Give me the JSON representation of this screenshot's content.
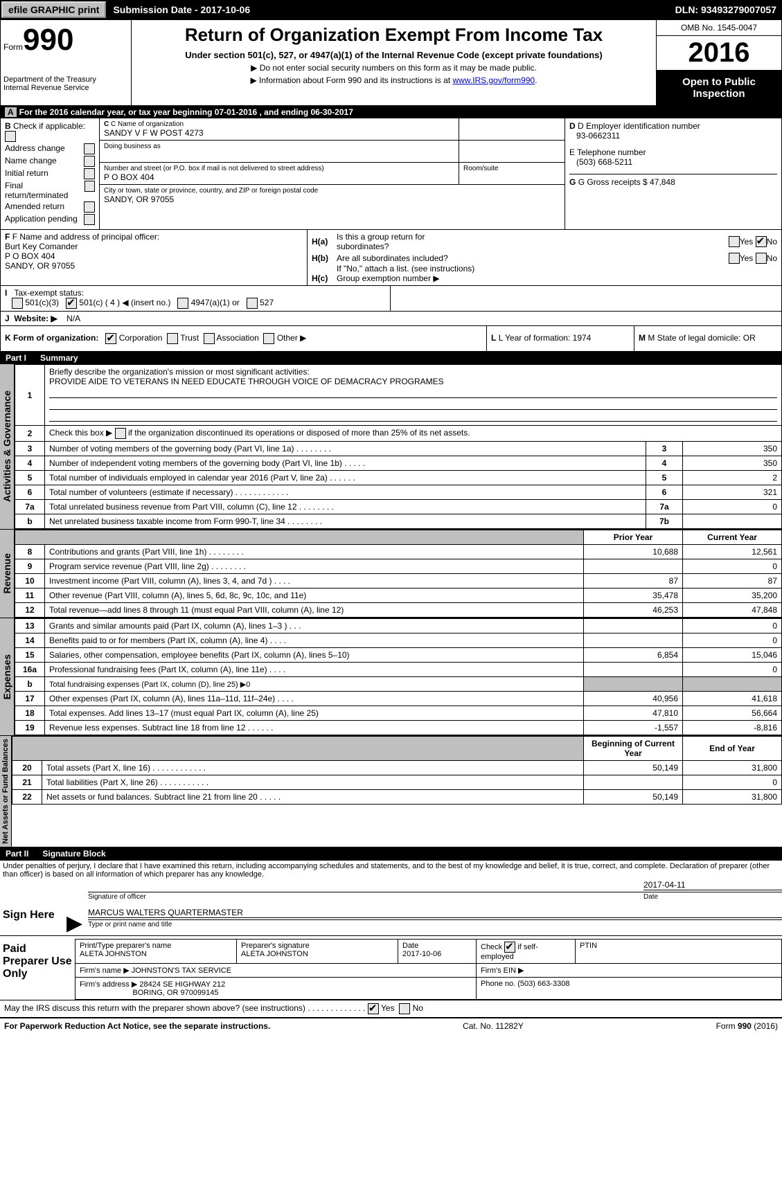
{
  "topbar": {
    "efile": "efile GRAPHIC print",
    "submission": "Submission Date - 2017-10-06",
    "dln": "DLN: 93493279007057"
  },
  "header": {
    "form_word": "Form",
    "form_num": "990",
    "dept": "Department of the Treasury",
    "irs": "Internal Revenue Service",
    "title": "Return of Organization Exempt From Income Tax",
    "subtitle": "Under section 501(c), 527, or 4947(a)(1) of the Internal Revenue Code (except private foundations)",
    "note1": "▶ Do not enter social security numbers on this form as it may be made public.",
    "note2_pre": "▶ Information about Form 990 and its instructions is at ",
    "note2_link": "www.IRS.gov/form990",
    "omb": "OMB No. 1545-0047",
    "year": "2016",
    "open": "Open to Public Inspection"
  },
  "sectionA": {
    "yearline": "For the 2016 calendar year, or tax year beginning 07-01-2016        , and ending 06-30-2017",
    "b_label": "Check if applicable:",
    "b_items": [
      "Address change",
      "Name change",
      "Initial return",
      "Final return/terminated",
      "Amended return",
      "Application pending"
    ],
    "c_label": "C Name of organization",
    "c_name": "SANDY V F W POST 4273",
    "dba_label": "Doing business as",
    "addr_label": "Number and street (or P.O. box if mail is not delivered to street address)",
    "room_label": "Room/suite",
    "addr": "P O BOX 404",
    "city_label": "City or town, state or province, country, and ZIP or foreign postal code",
    "city": "SANDY, OR  97055",
    "d_label": "D Employer identification number",
    "d_val": "93-0662311",
    "e_label": "E Telephone number",
    "e_val": "(503) 668-5211",
    "g_label": "G Gross receipts $ 47,848",
    "f_label": "F  Name and address of principal officer:",
    "f_name": "Burt Key Comander",
    "f_addr1": "P O BOX 404",
    "f_addr2": "SANDY, OR  97055",
    "ha_label": "Is this a group return for",
    "ha_label2": "subordinates?",
    "hb_label": "Are all subordinates included?",
    "hb_note": "If \"No,\" attach a list. (see instructions)",
    "hc_label": "Group exemption number ▶",
    "i_label": "Tax-exempt status:",
    "i_501c3": "501(c)(3)",
    "i_501c": "501(c) ( 4 ) ◀ (insert no.)",
    "i_4947": "4947(a)(1) or",
    "i_527": "527",
    "j_label": "Website: ▶",
    "j_val": "N/A",
    "k_label": "K Form of organization:",
    "k_opts": [
      "Corporation",
      "Trust",
      "Association",
      "Other ▶"
    ],
    "l_label": "L Year of formation: 1974",
    "m_label": "M State of legal domicile: OR"
  },
  "partI": {
    "header": "Part I",
    "title": "Summary",
    "tab_ag": "Activities & Governance",
    "tab_rev": "Revenue",
    "tab_exp": "Expenses",
    "tab_na": "Net Assets or Fund Balances",
    "l1_label": "Briefly describe the organization's mission or most significant activities:",
    "l1_val": "PROVIDE AIDE TO VETERANS IN NEED EDUCATE THROUGH VOICE OF DEMACRACY PROGRAMES",
    "l2": "Check this box ▶        if the organization discontinued its operations or disposed of more than 25% of its net assets.",
    "l3": "Number of voting members of the governing body (Part VI, line 1a)   .     .     .     .     .     .     .     .",
    "l4": "Number of independent voting members of the governing body (Part VI, line 1b)     .     .     .     .     .",
    "l5": "Total number of individuals employed in calendar year 2016 (Part V, line 2a)   .     .     .     .     .     .",
    "l6": "Total number of volunteers (estimate if necessary)    .     .     .     .     .     .     .     .     .     .     .     .",
    "l7a": "Total unrelated business revenue from Part VIII, column (C), line 12   .     .     .     .     .     .     .     .",
    "l7b": "Net unrelated business taxable income from Form 990-T, line 34   .     .     .     .     .     .     .     .",
    "v3": "350",
    "v4": "350",
    "v5": "2",
    "v6": "321",
    "v7a": "0",
    "v7b": "",
    "prior": "Prior Year",
    "current": "Current Year",
    "rows_rev": [
      {
        "n": "8",
        "d": "Contributions and grants (Part VIII, line 1h)    .     .     .     .     .     .     .     .",
        "p": "10,688",
        "c": "12,561"
      },
      {
        "n": "9",
        "d": "Program service revenue (Part VIII, line 2g)     .     .     .     .     .     .     .     .",
        "p": "",
        "c": "0"
      },
      {
        "n": "10",
        "d": "Investment income (Part VIII, column (A), lines 3, 4, and 7d )    .     .     .     .",
        "p": "87",
        "c": "87"
      },
      {
        "n": "11",
        "d": "Other revenue (Part VIII, column (A), lines 5, 6d, 8c, 9c, 10c, and 11e)",
        "p": "35,478",
        "c": "35,200"
      },
      {
        "n": "12",
        "d": "Total revenue—add lines 8 through 11 (must equal Part VIII, column (A), line 12)",
        "p": "46,253",
        "c": "47,848"
      }
    ],
    "rows_exp": [
      {
        "n": "13",
        "d": "Grants and similar amounts paid (Part IX, column (A), lines 1–3 )   .     .     .",
        "p": "",
        "c": "0"
      },
      {
        "n": "14",
        "d": "Benefits paid to or for members (Part IX, column (A), line 4)   .     .     .     .",
        "p": "",
        "c": "0"
      },
      {
        "n": "15",
        "d": "Salaries, other compensation, employee benefits (Part IX, column (A), lines 5–10)",
        "p": "6,854",
        "c": "15,046"
      },
      {
        "n": "16a",
        "d": "Professional fundraising fees (Part IX, column (A), line 11e)    .     .     .     .",
        "p": "",
        "c": "0"
      },
      {
        "n": "b",
        "d": "Total fundraising expenses (Part IX, column (D), line 25) ▶0",
        "p": "GRAY",
        "c": "GRAY"
      },
      {
        "n": "17",
        "d": "Other expenses (Part IX, column (A), lines 11a–11d, 11f–24e)    .     .     .     .",
        "p": "40,956",
        "c": "41,618"
      },
      {
        "n": "18",
        "d": "Total expenses. Add lines 13–17 (must equal Part IX, column (A), line 25)",
        "p": "47,810",
        "c": "56,664"
      },
      {
        "n": "19",
        "d": "Revenue less expenses. Subtract line 18 from line 12  .     .     .     .     .     .",
        "p": "-1,557",
        "c": "-8,816"
      }
    ],
    "na_h1": "Beginning of Current Year",
    "na_h2": "End of Year",
    "rows_na": [
      {
        "n": "20",
        "d": "Total assets (Part X, line 16)   .     .     .     .     .     .     .     .     .     .     .     .",
        "p": "50,149",
        "c": "31,800"
      },
      {
        "n": "21",
        "d": "Total liabilities (Part X, line 26)   .     .     .     .     .     .     .     .     .     .     .",
        "p": "",
        "c": "0"
      },
      {
        "n": "22",
        "d": "Net assets or fund balances. Subtract line 21 from line 20   .     .     .     .     .",
        "p": "50,149",
        "c": "31,800"
      }
    ]
  },
  "partII": {
    "header": "Part II",
    "title": "Signature Block",
    "decl": "Under penalties of perjury, I declare that I have examined this return, including accompanying schedules and statements, and to the best of my knowledge and belief, it is true, correct, and complete. Declaration of preparer (other than officer) is based on all information of which preparer has any knowledge.",
    "sign_here": "Sign Here",
    "sig_officer": "Signature of officer",
    "sig_date": "2017-04-11",
    "date_lbl": "Date",
    "officer_name": "MARCUS WALTERS  QUARTERMASTER",
    "type_lbl": "Type or print name and title",
    "paid": "Paid Preparer Use Only",
    "prep_name_lbl": "Print/Type preparer's name",
    "prep_name": "ALETA JOHNSTON",
    "prep_sig_lbl": "Preparer's signature",
    "prep_sig": "ALETA JOHNSTON",
    "prep_date_lbl": "Date",
    "prep_date": "2017-10-06",
    "check_self": "Check          if self-employed",
    "ptin": "PTIN",
    "firm_name_lbl": "Firm's name      ▶",
    "firm_name": "JOHNSTON'S TAX SERVICE",
    "firm_ein": "Firm's EIN ▶",
    "firm_addr_lbl": "Firm's address ▶",
    "firm_addr1": "28424 SE HIGHWAY 212",
    "firm_addr2": "BORING, OR  970099145",
    "phone_lbl": "Phone no. (503) 663-3308",
    "discuss": "May the IRS discuss this return with the preparer shown above? (see instructions)    .     .     .     .     .     .     .     .     .     .     .     .     .",
    "yes": "Yes",
    "no": "No"
  },
  "footer": {
    "pra": "For Paperwork Reduction Act Notice, see the separate instructions.",
    "cat": "Cat. No. 11282Y",
    "form": "Form 990 (2016)"
  }
}
